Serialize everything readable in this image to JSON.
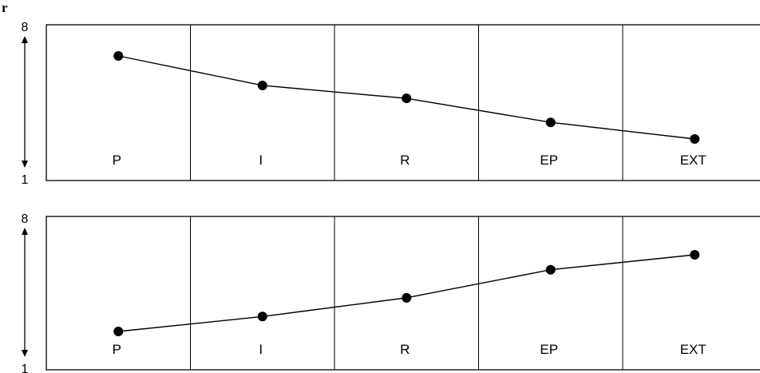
{
  "corner_label": "r",
  "chart_data": [
    {
      "type": "line",
      "categories": [
        "P",
        "I",
        "R",
        "EP",
        "EXT"
      ],
      "values": [
        6.7,
        5.1,
        4.4,
        3.1,
        2.2
      ],
      "ylim": [
        1,
        8
      ],
      "ytick_labels": [
        "8",
        "1"
      ],
      "grid": false
    },
    {
      "type": "line",
      "categories": [
        "P",
        "I",
        "R",
        "EP",
        "EXT"
      ],
      "values": [
        1.9,
        2.7,
        3.7,
        5.2,
        6.0
      ],
      "ylim": [
        1,
        8
      ],
      "ytick_labels": [
        "8",
        "1"
      ],
      "grid": false
    }
  ]
}
